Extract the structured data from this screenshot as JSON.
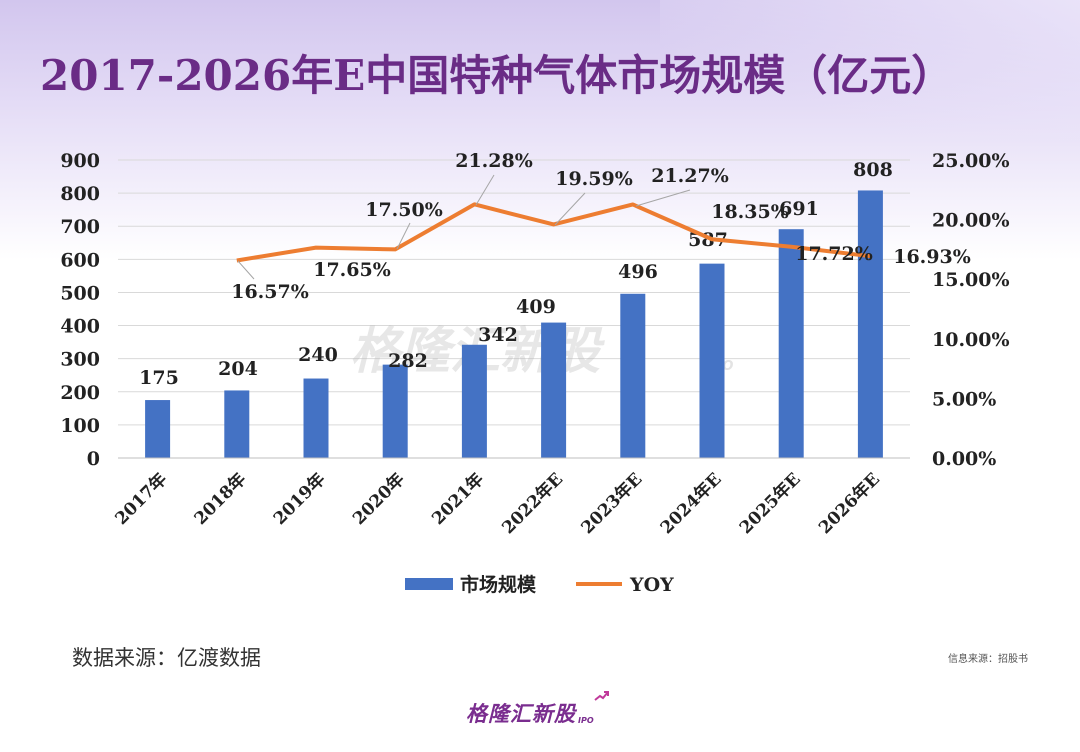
{
  "title": "2017-2026年E中国特种气体市场规模（亿元）",
  "source": "数据来源：亿渡数据",
  "info": "信息来源：招股书",
  "watermark": {
    "text": "格隆汇新股",
    "sub": "IPO"
  },
  "footer_logo": {
    "text": "格隆汇新股",
    "sub": "IPO"
  },
  "colors": {
    "bar": "#4472c4",
    "line": "#ed7d31",
    "title": "#6a2c86"
  },
  "chart_data": {
    "type": "bar+line",
    "title": "2017-2026年E中国特种气体市场规模（亿元）",
    "categories": [
      "2017年",
      "2018年",
      "2019年",
      "2020年",
      "2021年",
      "2022年E",
      "2023年E",
      "2024年E",
      "2025年E",
      "2026年E"
    ],
    "series": [
      {
        "name": "市场规模",
        "type": "bar",
        "axis": "left",
        "values": [
          175,
          204,
          240,
          282,
          342,
          409,
          496,
          587,
          691,
          808
        ],
        "labels": [
          "175",
          "204",
          "240",
          "282",
          "342",
          "409",
          "496",
          "587",
          "691",
          "808"
        ]
      },
      {
        "name": "YOY",
        "type": "line",
        "axis": "right",
        "values": [
          null,
          16.57,
          17.65,
          17.5,
          21.28,
          19.59,
          21.27,
          18.35,
          17.72,
          16.93
        ],
        "labels": [
          "",
          "16.57%",
          "17.65%",
          "17.50%",
          "21.28%",
          "19.59%",
          "21.27%",
          "18.35%",
          "17.72%",
          "16.93%"
        ]
      }
    ],
    "y_left": {
      "min": 0,
      "max": 900,
      "ticks": [
        "0",
        "100",
        "200",
        "300",
        "400",
        "500",
        "600",
        "700",
        "800",
        "900"
      ]
    },
    "y_right": {
      "min": 0,
      "max": 25,
      "ticks": [
        "0.00%",
        "5.00%",
        "10.00%",
        "15.00%",
        "20.00%",
        "25.00%"
      ]
    },
    "legend": {
      "position": "bottom",
      "items": [
        "市场规模",
        "YOY"
      ]
    },
    "grid": true
  }
}
